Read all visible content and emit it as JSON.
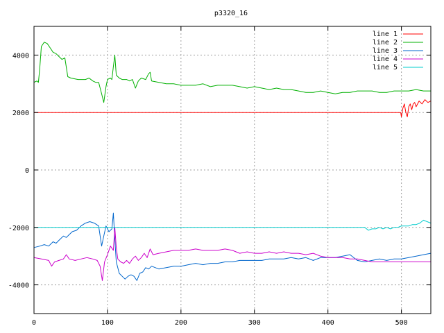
{
  "chart_data": {
    "type": "line",
    "title": "p3320_16",
    "xlabel": "",
    "ylabel": "",
    "xlim": [
      0,
      540
    ],
    "ylim": [
      -5000,
      5000
    ],
    "x_ticks": [
      0,
      100,
      200,
      300,
      400,
      500
    ],
    "x_tick_labels": [
      "0",
      "100",
      "200",
      "300",
      "400",
      "500"
    ],
    "y_ticks": [
      -4000,
      -2000,
      0,
      2000,
      4000
    ],
    "y_tick_labels": [
      "-4000",
      "-2000",
      "0",
      "2000",
      "4000"
    ],
    "grid": true,
    "legend_position": "top-right",
    "series": [
      {
        "name": "line 1",
        "color": "#ff0000",
        "points": [
          [
            0,
            2000
          ],
          [
            100,
            2000
          ],
          [
            200,
            2000
          ],
          [
            300,
            2000
          ],
          [
            400,
            2000
          ],
          [
            499,
            2000
          ],
          [
            500,
            1850
          ],
          [
            502,
            2150
          ],
          [
            504,
            2300
          ],
          [
            506,
            2000
          ],
          [
            508,
            1850
          ],
          [
            510,
            2200
          ],
          [
            512,
            2300
          ],
          [
            514,
            2100
          ],
          [
            516,
            2300
          ],
          [
            518,
            2350
          ],
          [
            520,
            2200
          ],
          [
            524,
            2400
          ],
          [
            528,
            2300
          ],
          [
            532,
            2450
          ],
          [
            536,
            2350
          ],
          [
            540,
            2400
          ]
        ]
      },
      {
        "name": "line 2",
        "color": "#00b000",
        "points": [
          [
            0,
            3050
          ],
          [
            4,
            3100
          ],
          [
            6,
            3050
          ],
          [
            8,
            3600
          ],
          [
            10,
            4300
          ],
          [
            14,
            4450
          ],
          [
            18,
            4400
          ],
          [
            22,
            4250
          ],
          [
            26,
            4100
          ],
          [
            30,
            4050
          ],
          [
            34,
            3950
          ],
          [
            38,
            3850
          ],
          [
            42,
            3900
          ],
          [
            46,
            3250
          ],
          [
            50,
            3200
          ],
          [
            60,
            3150
          ],
          [
            70,
            3150
          ],
          [
            75,
            3200
          ],
          [
            80,
            3100
          ],
          [
            84,
            3050
          ],
          [
            88,
            3050
          ],
          [
            92,
            2650
          ],
          [
            95,
            2350
          ],
          [
            98,
            2900
          ],
          [
            100,
            3150
          ],
          [
            104,
            3200
          ],
          [
            106,
            3150
          ],
          [
            108,
            3600
          ],
          [
            110,
            4000
          ],
          [
            112,
            3300
          ],
          [
            116,
            3200
          ],
          [
            120,
            3150
          ],
          [
            126,
            3150
          ],
          [
            130,
            3100
          ],
          [
            134,
            3150
          ],
          [
            138,
            2850
          ],
          [
            142,
            3100
          ],
          [
            146,
            3200
          ],
          [
            152,
            3150
          ],
          [
            156,
            3350
          ],
          [
            158,
            3400
          ],
          [
            160,
            3100
          ],
          [
            170,
            3050
          ],
          [
            180,
            3000
          ],
          [
            190,
            3000
          ],
          [
            200,
            2950
          ],
          [
            210,
            2950
          ],
          [
            220,
            2950
          ],
          [
            230,
            3000
          ],
          [
            240,
            2900
          ],
          [
            250,
            2950
          ],
          [
            260,
            2950
          ],
          [
            270,
            2950
          ],
          [
            280,
            2900
          ],
          [
            290,
            2850
          ],
          [
            300,
            2900
          ],
          [
            310,
            2850
          ],
          [
            320,
            2800
          ],
          [
            330,
            2850
          ],
          [
            340,
            2800
          ],
          [
            350,
            2800
          ],
          [
            360,
            2750
          ],
          [
            370,
            2700
          ],
          [
            380,
            2700
          ],
          [
            390,
            2750
          ],
          [
            400,
            2700
          ],
          [
            410,
            2650
          ],
          [
            420,
            2700
          ],
          [
            430,
            2700
          ],
          [
            440,
            2750
          ],
          [
            450,
            2750
          ],
          [
            460,
            2750
          ],
          [
            470,
            2700
          ],
          [
            480,
            2700
          ],
          [
            490,
            2750
          ],
          [
            500,
            2750
          ],
          [
            510,
            2750
          ],
          [
            520,
            2800
          ],
          [
            530,
            2750
          ],
          [
            540,
            2750
          ]
        ]
      },
      {
        "name": "line 3",
        "color": "#0066cc",
        "points": [
          [
            0,
            -2700
          ],
          [
            8,
            -2650
          ],
          [
            14,
            -2600
          ],
          [
            20,
            -2650
          ],
          [
            26,
            -2500
          ],
          [
            30,
            -2550
          ],
          [
            34,
            -2450
          ],
          [
            40,
            -2300
          ],
          [
            44,
            -2350
          ],
          [
            48,
            -2250
          ],
          [
            52,
            -2150
          ],
          [
            58,
            -2100
          ],
          [
            64,
            -1950
          ],
          [
            70,
            -1850
          ],
          [
            76,
            -1800
          ],
          [
            82,
            -1850
          ],
          [
            88,
            -1950
          ],
          [
            92,
            -2650
          ],
          [
            95,
            -2300
          ],
          [
            98,
            -1950
          ],
          [
            102,
            -2150
          ],
          [
            106,
            -2050
          ],
          [
            108,
            -1500
          ],
          [
            110,
            -2400
          ],
          [
            112,
            -3200
          ],
          [
            116,
            -3600
          ],
          [
            120,
            -3700
          ],
          [
            124,
            -3800
          ],
          [
            128,
            -3700
          ],
          [
            132,
            -3650
          ],
          [
            136,
            -3700
          ],
          [
            140,
            -3850
          ],
          [
            144,
            -3600
          ],
          [
            148,
            -3550
          ],
          [
            152,
            -3400
          ],
          [
            156,
            -3450
          ],
          [
            160,
            -3350
          ],
          [
            170,
            -3450
          ],
          [
            180,
            -3400
          ],
          [
            190,
            -3350
          ],
          [
            200,
            -3350
          ],
          [
            210,
            -3300
          ],
          [
            220,
            -3250
          ],
          [
            230,
            -3300
          ],
          [
            240,
            -3250
          ],
          [
            250,
            -3250
          ],
          [
            260,
            -3200
          ],
          [
            270,
            -3200
          ],
          [
            280,
            -3150
          ],
          [
            290,
            -3150
          ],
          [
            300,
            -3150
          ],
          [
            310,
            -3150
          ],
          [
            320,
            -3100
          ],
          [
            330,
            -3100
          ],
          [
            340,
            -3100
          ],
          [
            350,
            -3050
          ],
          [
            360,
            -3100
          ],
          [
            370,
            -3050
          ],
          [
            380,
            -3150
          ],
          [
            390,
            -3050
          ],
          [
            400,
            -3050
          ],
          [
            410,
            -3050
          ],
          [
            420,
            -3000
          ],
          [
            430,
            -2950
          ],
          [
            440,
            -3150
          ],
          [
            450,
            -3200
          ],
          [
            460,
            -3150
          ],
          [
            470,
            -3100
          ],
          [
            480,
            -3150
          ],
          [
            490,
            -3100
          ],
          [
            500,
            -3100
          ],
          [
            510,
            -3050
          ],
          [
            520,
            -3000
          ],
          [
            530,
            -2950
          ],
          [
            540,
            -2900
          ]
        ]
      },
      {
        "name": "line 4",
        "color": "#cc00cc",
        "points": [
          [
            0,
            -3050
          ],
          [
            10,
            -3100
          ],
          [
            20,
            -3150
          ],
          [
            24,
            -3350
          ],
          [
            28,
            -3200
          ],
          [
            34,
            -3150
          ],
          [
            40,
            -3100
          ],
          [
            44,
            -2950
          ],
          [
            48,
            -3100
          ],
          [
            56,
            -3150
          ],
          [
            64,
            -3100
          ],
          [
            72,
            -3050
          ],
          [
            80,
            -3100
          ],
          [
            86,
            -3150
          ],
          [
            90,
            -3350
          ],
          [
            93,
            -3850
          ],
          [
            96,
            -3200
          ],
          [
            100,
            -2950
          ],
          [
            104,
            -2650
          ],
          [
            108,
            -2800
          ],
          [
            110,
            -2000
          ],
          [
            112,
            -2700
          ],
          [
            114,
            -3100
          ],
          [
            118,
            -3200
          ],
          [
            122,
            -3250
          ],
          [
            126,
            -3150
          ],
          [
            130,
            -3250
          ],
          [
            134,
            -3100
          ],
          [
            138,
            -3000
          ],
          [
            142,
            -3150
          ],
          [
            146,
            -3050
          ],
          [
            150,
            -2900
          ],
          [
            154,
            -3050
          ],
          [
            158,
            -2750
          ],
          [
            162,
            -2950
          ],
          [
            170,
            -2900
          ],
          [
            180,
            -2850
          ],
          [
            190,
            -2800
          ],
          [
            200,
            -2800
          ],
          [
            210,
            -2800
          ],
          [
            220,
            -2750
          ],
          [
            230,
            -2800
          ],
          [
            240,
            -2800
          ],
          [
            250,
            -2800
          ],
          [
            260,
            -2750
          ],
          [
            270,
            -2800
          ],
          [
            280,
            -2900
          ],
          [
            290,
            -2850
          ],
          [
            300,
            -2900
          ],
          [
            310,
            -2900
          ],
          [
            320,
            -2850
          ],
          [
            330,
            -2900
          ],
          [
            340,
            -2850
          ],
          [
            350,
            -2900
          ],
          [
            360,
            -2900
          ],
          [
            370,
            -2950
          ],
          [
            380,
            -2900
          ],
          [
            390,
            -3000
          ],
          [
            400,
            -3050
          ],
          [
            410,
            -3050
          ],
          [
            420,
            -3050
          ],
          [
            430,
            -3100
          ],
          [
            440,
            -3100
          ],
          [
            450,
            -3150
          ],
          [
            460,
            -3200
          ],
          [
            470,
            -3200
          ],
          [
            480,
            -3200
          ],
          [
            490,
            -3200
          ],
          [
            500,
            -3200
          ],
          [
            510,
            -3200
          ],
          [
            520,
            -3200
          ],
          [
            530,
            -3200
          ],
          [
            540,
            -3200
          ]
        ]
      },
      {
        "name": "line 5",
        "color": "#00cccc",
        "points": [
          [
            0,
            -2000
          ],
          [
            100,
            -2000
          ],
          [
            200,
            -2000
          ],
          [
            300,
            -2000
          ],
          [
            400,
            -2000
          ],
          [
            450,
            -2000
          ],
          [
            455,
            -2100
          ],
          [
            460,
            -2050
          ],
          [
            465,
            -2050
          ],
          [
            470,
            -2000
          ],
          [
            475,
            -2050
          ],
          [
            480,
            -2000
          ],
          [
            485,
            -2050
          ],
          [
            490,
            -2000
          ],
          [
            495,
            -2000
          ],
          [
            500,
            -1950
          ],
          [
            505,
            -1950
          ],
          [
            510,
            -1950
          ],
          [
            515,
            -1900
          ],
          [
            520,
            -1900
          ],
          [
            525,
            -1850
          ],
          [
            530,
            -1750
          ],
          [
            535,
            -1800
          ],
          [
            540,
            -1850
          ]
        ]
      }
    ]
  }
}
